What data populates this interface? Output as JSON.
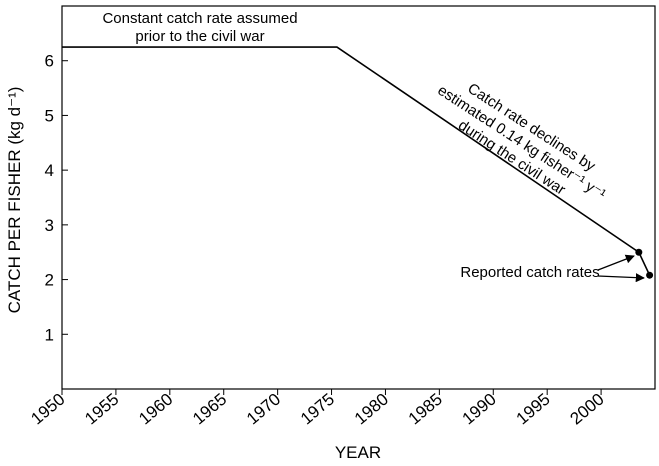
{
  "chart_data": {
    "type": "line",
    "x_label": "YEAR",
    "y_label": "CATCH PER FISHER (kg d⁻¹)",
    "xlim": [
      1950,
      2005
    ],
    "xticks": [
      1950,
      1955,
      1960,
      1965,
      1970,
      1975,
      1980,
      1985,
      1990,
      1995,
      2000
    ],
    "ylim": [
      0,
      7
    ],
    "yticks": [
      1,
      2,
      3,
      4,
      5,
      6
    ],
    "series": [
      {
        "name": "Catch rate",
        "color": "#000000",
        "x": [
          1950,
          1975.5,
          2003.5,
          2004.5
        ],
        "values": [
          6.25,
          6.25,
          2.5,
          2.08
        ]
      },
      {
        "name": "Reported catch rates",
        "color": "#000000",
        "x": [
          2003.5,
          2004.5
        ],
        "values": [
          2.5,
          2.08
        ],
        "markers": true
      }
    ],
    "annotations": [
      [
        "Constant catch rate assumed",
        "prior to the civil war"
      ],
      [
        "Catch rate declines by",
        "estimated 0.14 kg fisher⁻¹ y⁻¹",
        "during the civil war"
      ],
      [
        "Reported catch rates"
      ]
    ]
  }
}
